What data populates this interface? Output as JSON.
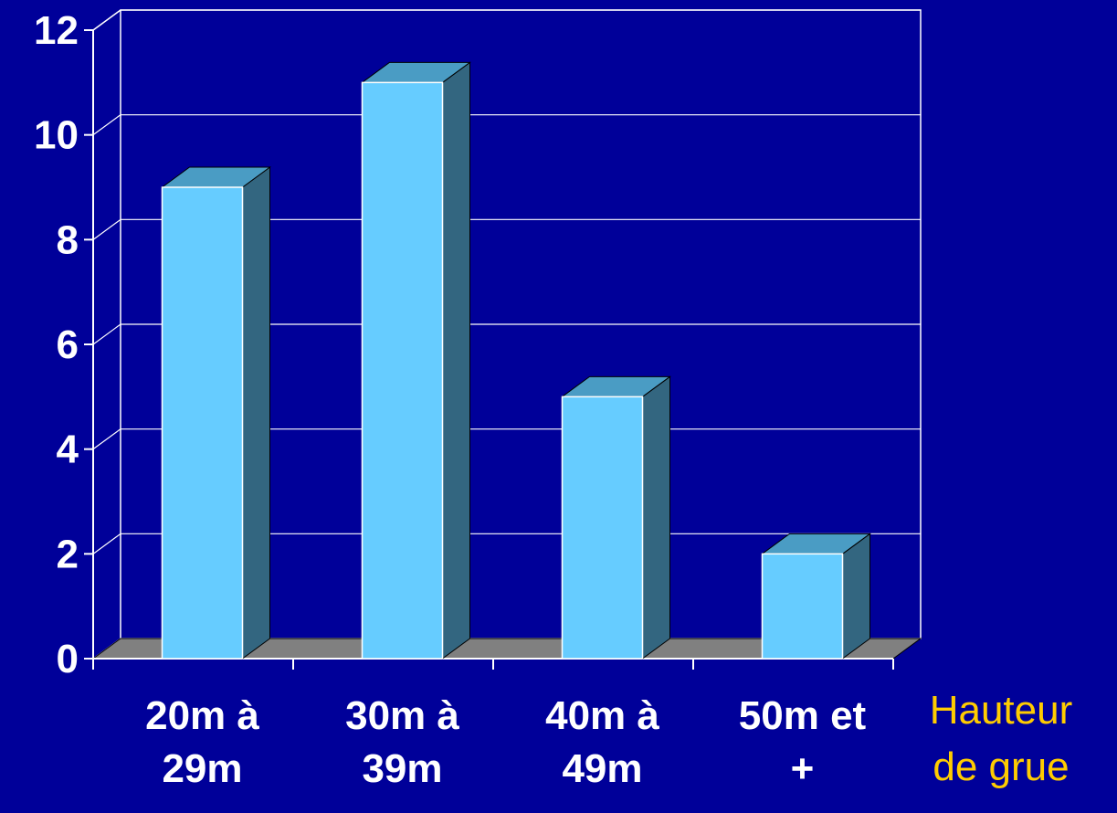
{
  "chart_data": {
    "type": "bar",
    "style": "3d-column",
    "categories": [
      [
        "20m à",
        "29m"
      ],
      [
        "30m à",
        "39m"
      ],
      [
        "40m à",
        "49m"
      ],
      [
        "50m et",
        "+"
      ]
    ],
    "values": [
      9,
      11,
      5,
      2
    ],
    "xlabel": [
      "Hauteur",
      "de grue"
    ],
    "ylabel": "",
    "ylim": [
      0,
      12
    ],
    "yticks": [
      0,
      2,
      4,
      6,
      8,
      10,
      12
    ],
    "grid": true,
    "legend": "none"
  },
  "colors": {
    "background": "#000099",
    "bar_front": "#66ccff",
    "bar_top": "#4a9cc4",
    "bar_side": "#336680",
    "floor": "#808080",
    "gridline": "#ffffff",
    "tick_text": "#ffffff",
    "axis_title": "#ffcc00"
  }
}
